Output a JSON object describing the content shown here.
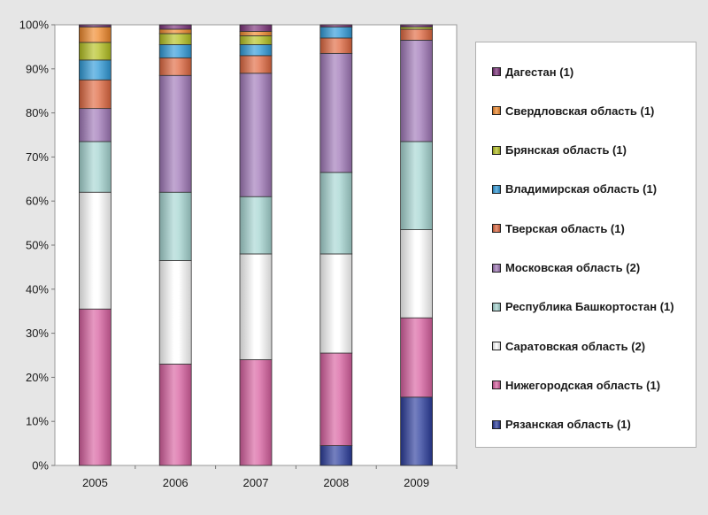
{
  "chart_data": {
    "type": "bar",
    "stacked": "percent",
    "categories": [
      "2005",
      "2006",
      "2007",
      "2008",
      "2009"
    ],
    "y_ticks": [
      "0%",
      "10%",
      "20%",
      "30%",
      "40%",
      "50%",
      "60%",
      "70%",
      "80%",
      "90%",
      "100%"
    ],
    "ylim": [
      0,
      100
    ],
    "legend_position": "right",
    "grid": false,
    "series": [
      {
        "name": "Рязанская область (1)",
        "color": "#2a3c9c",
        "values": [
          0,
          0,
          0,
          4.5,
          15.5
        ]
      },
      {
        "name": "Нижегородская область (1)",
        "color": "#d860a0",
        "values": [
          35.5,
          23,
          24,
          21,
          18
        ]
      },
      {
        "name": "Саратовская область (2)",
        "color": "#ffffff",
        "values": [
          26.5,
          23.5,
          24,
          22.5,
          20
        ]
      },
      {
        "name": "Республика Башкортостан (1)",
        "color": "#a6d6d2",
        "values": [
          11.5,
          15.5,
          13,
          18.5,
          20
        ]
      },
      {
        "name": "Московская область (2)",
        "color": "#a078b8",
        "values": [
          7.5,
          26.5,
          28,
          27,
          23
        ]
      },
      {
        "name": "Тверская область (1)",
        "color": "#e06840",
        "values": [
          6.5,
          4,
          4,
          3.5,
          2.5
        ]
      },
      {
        "name": "Владимирская область (1)",
        "color": "#2f9ad8",
        "values": [
          4.5,
          3,
          2.5,
          2.5,
          0
        ]
      },
      {
        "name": "Брянская область (1)",
        "color": "#b4c020",
        "values": [
          4,
          2.5,
          2,
          0,
          0.5
        ]
      },
      {
        "name": "Свердловская область (1)",
        "color": "#f0882a",
        "values": [
          3.5,
          1,
          1,
          0,
          0
        ]
      },
      {
        "name": "Дагестан (1)",
        "color": "#7a3078",
        "values": [
          0.5,
          1,
          1.5,
          0.5,
          0.5
        ]
      }
    ]
  }
}
